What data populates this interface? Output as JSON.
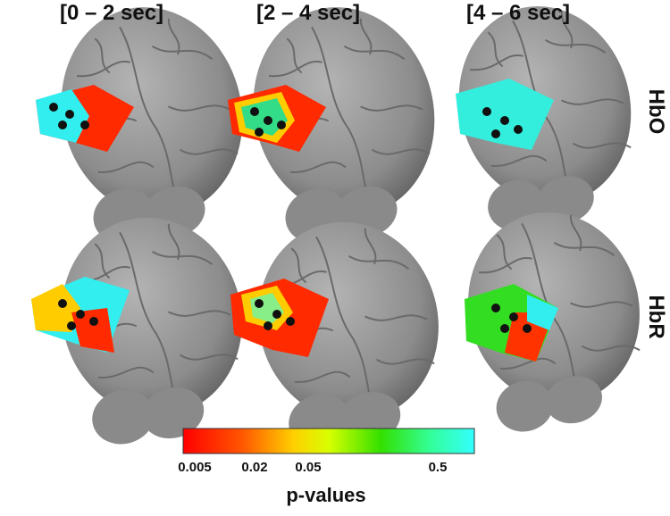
{
  "columns": [
    "[0 – 2 sec]",
    "[2 – 4 sec]",
    "[4 – 6 sec]"
  ],
  "rows": [
    "HbO",
    "HbR"
  ],
  "colorbar": {
    "ticks": [
      "0.005",
      "0.02",
      "0.05",
      "0.5"
    ],
    "title": "p-values"
  }
}
